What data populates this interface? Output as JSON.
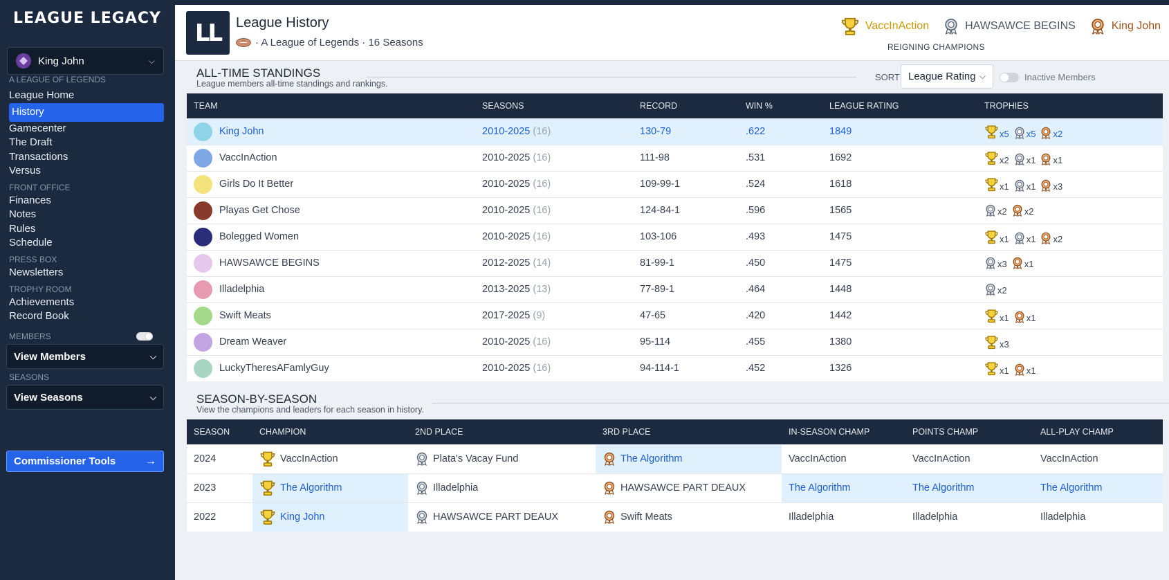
{
  "sidebar": {
    "logo": "LEAGUE LEGACY",
    "user": "King John",
    "sections": [
      {
        "label": "A LEAGUE OF LEGENDS",
        "items": [
          "League Home",
          "History",
          "Gamecenter",
          "The Draft",
          "Transactions",
          "Versus"
        ]
      },
      {
        "label": "FRONT OFFICE",
        "items": [
          "Finances",
          "Notes",
          "Rules",
          "Schedule"
        ]
      },
      {
        "label": "PRESS BOX",
        "items": [
          "Newsletters"
        ]
      },
      {
        "label": "TROPHY ROOM",
        "items": [
          "Achievements",
          "Record Book"
        ]
      }
    ],
    "active_item": "History",
    "members_label": "MEMBERS",
    "members_dropdown": "View Members",
    "seasons_label": "SEASONS",
    "seasons_dropdown": "View Seasons",
    "commissioner": "Commissioner Tools"
  },
  "header": {
    "logo_text": "LL",
    "title": "League History",
    "subtitle": "· A League of Legends · 16 Seasons",
    "champions": [
      {
        "name": "VaccInAction",
        "color": "#c99a06",
        "trophy": "gold"
      },
      {
        "name": "HAWSAWCE BEGINS",
        "color": "#4b5563",
        "trophy": "silver"
      },
      {
        "name": "King John",
        "color": "#a0521a",
        "trophy": "bronze"
      }
    ],
    "reigning": "REIGNING CHAMPIONS"
  },
  "standings": {
    "title": "ALL-TIME STANDINGS",
    "desc": "League members all-time standings and rankings.",
    "sort_label": "SORT",
    "sort_value": "League Rating",
    "inactive_label": "Inactive Members",
    "columns": [
      "TEAM",
      "SEASONS",
      "RECORD",
      "WIN %",
      "LEAGUE RATING",
      "TROPHIES"
    ],
    "rows": [
      {
        "team": "King John",
        "years": "2010-2025",
        "count": "(16)",
        "record": "130-79",
        "win": ".622",
        "rating": "1849",
        "gold": "x5",
        "silver": "x5",
        "bronze": "x2",
        "highlight": true,
        "avatar": "#8fd3e8"
      },
      {
        "team": "VaccInAction",
        "years": "2010-2025",
        "count": "(16)",
        "record": "111-98",
        "win": ".531",
        "rating": "1692",
        "gold": "x2",
        "silver": "x1",
        "bronze": "x1",
        "avatar": "#7ea7e6"
      },
      {
        "team": "Girls Do It Better",
        "years": "2010-2025",
        "count": "(16)",
        "record": "109-99-1",
        "win": ".524",
        "rating": "1618",
        "gold": "x1",
        "silver": "x1",
        "bronze": "x3",
        "avatar": "#f4e27a"
      },
      {
        "team": "Playas Get Chose",
        "years": "2010-2025",
        "count": "(16)",
        "record": "124-84-1",
        "win": ".596",
        "rating": "1565",
        "gold": "",
        "silver": "x2",
        "bronze": "x2",
        "avatar": "#8a3a2a"
      },
      {
        "team": "Bolegged Women",
        "years": "2010-2025",
        "count": "(16)",
        "record": "103-106",
        "win": ".493",
        "rating": "1475",
        "gold": "x1",
        "silver": "x1",
        "bronze": "x2",
        "avatar": "#2a2e7a"
      },
      {
        "team": "HAWSAWCE BEGINS",
        "years": "2012-2025",
        "count": "(14)",
        "record": "81-99-1",
        "win": ".450",
        "rating": "1475",
        "gold": "",
        "silver": "x3",
        "bronze": "x1",
        "avatar": "#e6c8ef"
      },
      {
        "team": "Illadelphia",
        "years": "2013-2025",
        "count": "(13)",
        "record": "77-89-1",
        "win": ".464",
        "rating": "1448",
        "gold": "",
        "silver": "x2",
        "bronze": "",
        "avatar": "#e79bb0"
      },
      {
        "team": "Swift Meats",
        "years": "2017-2025",
        "count": "(9)",
        "record": "47-65",
        "win": ".420",
        "rating": "1442",
        "gold": "x1",
        "silver": "",
        "bronze": "x1",
        "avatar": "#a5d98a"
      },
      {
        "team": "Dream Weaver",
        "years": "2010-2025",
        "count": "(16)",
        "record": "95-114",
        "win": ".455",
        "rating": "1380",
        "gold": "x3",
        "silver": "",
        "bronze": "",
        "avatar": "#c3a4e3"
      },
      {
        "team": "LuckyTheresAFamlyGuy",
        "years": "2010-2025",
        "count": "(16)",
        "record": "94-114-1",
        "win": ".452",
        "rating": "1326",
        "gold": "x1",
        "silver": "",
        "bronze": "x1",
        "avatar": "#a8d6c3"
      }
    ]
  },
  "seasons": {
    "title": "SEASON-BY-SEASON",
    "desc": "View the champions and leaders for each season in history.",
    "columns": [
      "SEASON",
      "CHAMPION",
      "2ND PLACE",
      "3RD PLACE",
      "IN-SEASON CHAMP",
      "POINTS CHAMP",
      "ALL-PLAY CHAMP"
    ],
    "rows": [
      {
        "season": "2024",
        "champ": "VaccInAction",
        "second": "Plata's Vacay Fund",
        "third": "The Algorithm",
        "inseason": "VaccInAction",
        "points": "VaccInAction",
        "allplay": "VaccInAction",
        "hl": [
          "third"
        ]
      },
      {
        "season": "2023",
        "champ": "The Algorithm",
        "second": "Illadelphia",
        "third": "HAWSAWCE PART DEAUX",
        "inseason": "The Algorithm",
        "points": "The Algorithm",
        "allplay": "The Algorithm",
        "hl": [
          "champ",
          "inseason",
          "points",
          "allplay"
        ]
      },
      {
        "season": "2022",
        "champ": "King John",
        "second": "HAWSAWCE PART DEAUX",
        "third": "Swift Meats",
        "inseason": "Illadelphia",
        "points": "Illadelphia",
        "allplay": "Illadelphia",
        "hl": [
          "champ"
        ]
      }
    ]
  }
}
